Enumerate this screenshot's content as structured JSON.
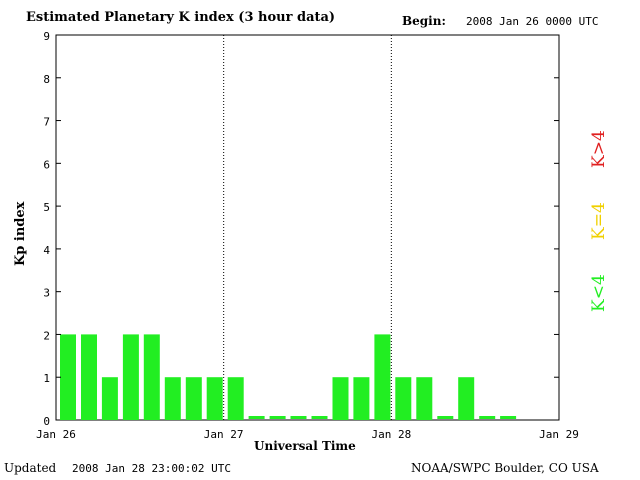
{
  "header": {
    "title": "Estimated Planetary K index (3 hour data)",
    "begin_label": "Begin:",
    "begin_value": "2008 Jan 26 0000 UTC"
  },
  "footer": {
    "updated_label": "Updated",
    "updated_value": "2008 Jan 28 23:00:02 UTC",
    "credit": "NOAA/SWPC Boulder, CO USA"
  },
  "legend": {
    "items": [
      {
        "label": "K<4",
        "color": "#22ee22"
      },
      {
        "label": "K=4",
        "color": "#f0d000"
      },
      {
        "label": "K>4",
        "color": "#e02020"
      }
    ]
  },
  "chart_data": {
    "type": "bar",
    "xlabel": "Universal Time",
    "ylabel": "Kp index",
    "ylim": [
      0,
      9
    ],
    "yticks": [
      "0",
      "1",
      "2",
      "3",
      "4",
      "5",
      "6",
      "7",
      "8",
      "9"
    ],
    "xticks": [
      "Jan 26",
      "Jan 27",
      "Jan 28",
      "Jan 29"
    ],
    "bar_color": "#22ee22",
    "values": [
      2,
      2,
      1,
      2,
      2,
      1,
      1,
      1,
      1,
      0,
      0,
      0,
      0,
      1,
      1,
      2,
      1,
      1,
      0,
      1,
      0,
      0
    ]
  }
}
